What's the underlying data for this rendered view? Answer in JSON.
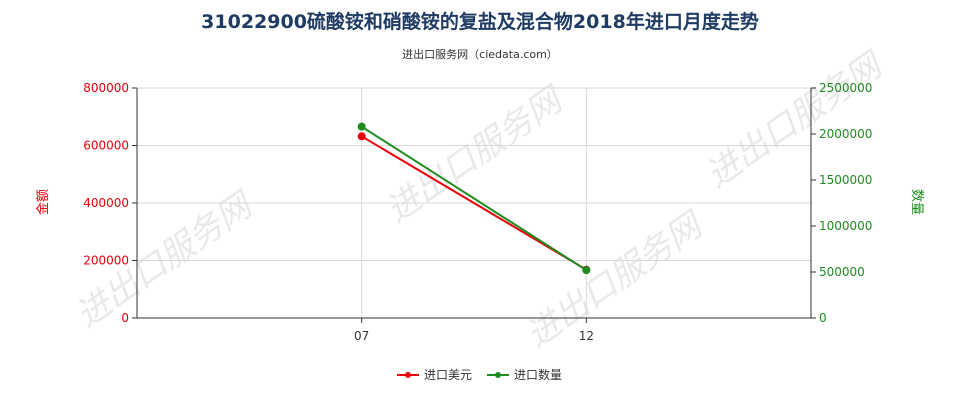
{
  "chart_data": {
    "type": "line",
    "title": "31022900硫酸铵和硝酸铵的复盐及混合物2018年进口月度走势",
    "subtitle": "进出口服务网（ciedata.com）",
    "watermark": "进出口服务网",
    "categories": [
      "07",
      "12"
    ],
    "y_left": {
      "label": "金额",
      "range": [
        0,
        800000
      ],
      "ticks": [
        "800000",
        "600000",
        "400000",
        "200000",
        "0"
      ],
      "color": "#e8000b"
    },
    "y_right": {
      "label": "数量",
      "range": [
        0,
        2500000
      ],
      "ticks": [
        "2500000",
        "2000000",
        "1500000",
        "1000000",
        "500000",
        "0"
      ],
      "color": "#1e8c1e"
    },
    "series": [
      {
        "name": "进口美元",
        "axis": "left",
        "color": "#e8000b",
        "values": [
          632000,
          168000
        ]
      },
      {
        "name": "进口数量",
        "axis": "right",
        "color": "#1e8c1e",
        "values": [
          2080000,
          520000
        ]
      }
    ],
    "grid": true,
    "legend_position": "bottom-center"
  }
}
